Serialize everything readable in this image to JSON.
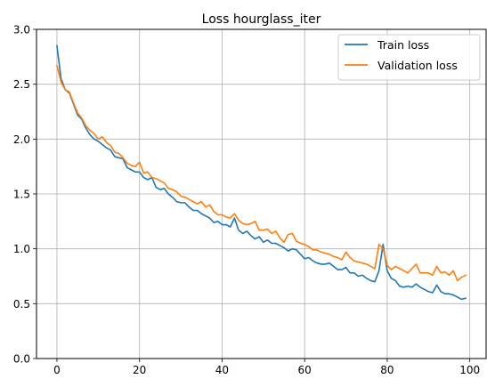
{
  "chart_data": {
    "type": "line",
    "title": "Loss hourglass_iter",
    "xlabel": "",
    "ylabel": "",
    "xlim": [
      -4.95,
      103.95
    ],
    "ylim": [
      0,
      3.0
    ],
    "xticks": [
      0,
      20,
      40,
      60,
      80,
      100
    ],
    "yticks": [
      0.0,
      0.5,
      1.0,
      1.5,
      2.0,
      2.5,
      3.0
    ],
    "xtick_labels": [
      "0",
      "20",
      "40",
      "60",
      "80",
      "100"
    ],
    "ytick_labels": [
      "0.0",
      "0.5",
      "1.0",
      "1.5",
      "2.0",
      "2.5",
      "3.0"
    ],
    "grid": true,
    "legend": {
      "position": "top-right",
      "entries": [
        "Train loss",
        "Validation loss"
      ]
    },
    "x": [
      0,
      1,
      2,
      3,
      4,
      5,
      6,
      7,
      8,
      9,
      10,
      11,
      12,
      13,
      14,
      15,
      16,
      17,
      18,
      19,
      20,
      21,
      22,
      23,
      24,
      25,
      26,
      27,
      28,
      29,
      30,
      31,
      32,
      33,
      34,
      35,
      36,
      37,
      38,
      39,
      40,
      41,
      42,
      43,
      44,
      45,
      46,
      47,
      48,
      49,
      50,
      51,
      52,
      53,
      54,
      55,
      56,
      57,
      58,
      59,
      60,
      61,
      62,
      63,
      64,
      65,
      66,
      67,
      68,
      69,
      70,
      71,
      72,
      73,
      74,
      75,
      76,
      77,
      78,
      79,
      80,
      81,
      82,
      83,
      84,
      85,
      86,
      87,
      88,
      89,
      90,
      91,
      92,
      93,
      94,
      95,
      96,
      97,
      98,
      99
    ],
    "series": [
      {
        "name": "Train loss",
        "color": "#1f77b4",
        "values": [
          2.85,
          2.55,
          2.45,
          2.42,
          2.32,
          2.22,
          2.18,
          2.1,
          2.04,
          2.0,
          1.98,
          1.95,
          1.92,
          1.9,
          1.84,
          1.83,
          1.82,
          1.74,
          1.72,
          1.7,
          1.7,
          1.65,
          1.63,
          1.65,
          1.56,
          1.54,
          1.55,
          1.5,
          1.47,
          1.43,
          1.42,
          1.42,
          1.38,
          1.35,
          1.35,
          1.32,
          1.3,
          1.28,
          1.24,
          1.25,
          1.22,
          1.22,
          1.2,
          1.28,
          1.17,
          1.14,
          1.16,
          1.12,
          1.09,
          1.11,
          1.06,
          1.08,
          1.05,
          1.05,
          1.03,
          1.01,
          0.98,
          1.0,
          0.99,
          0.95,
          0.91,
          0.92,
          0.89,
          0.87,
          0.86,
          0.86,
          0.87,
          0.84,
          0.81,
          0.81,
          0.83,
          0.78,
          0.78,
          0.75,
          0.76,
          0.73,
          0.71,
          0.7,
          0.8,
          1.04,
          0.8,
          0.73,
          0.71,
          0.66,
          0.65,
          0.66,
          0.65,
          0.68,
          0.65,
          0.63,
          0.61,
          0.6,
          0.67,
          0.61,
          0.59,
          0.59,
          0.58,
          0.56,
          0.54,
          0.55
        ]
      },
      {
        "name": "Validation loss",
        "color": "#ff7f0e",
        "values": [
          2.67,
          2.52,
          2.45,
          2.43,
          2.33,
          2.24,
          2.19,
          2.12,
          2.08,
          2.05,
          2.0,
          2.02,
          1.97,
          1.94,
          1.88,
          1.87,
          1.83,
          1.78,
          1.76,
          1.75,
          1.79,
          1.69,
          1.7,
          1.65,
          1.64,
          1.62,
          1.6,
          1.55,
          1.54,
          1.52,
          1.48,
          1.47,
          1.45,
          1.43,
          1.41,
          1.43,
          1.38,
          1.4,
          1.34,
          1.31,
          1.31,
          1.29,
          1.28,
          1.32,
          1.26,
          1.23,
          1.22,
          1.23,
          1.25,
          1.17,
          1.17,
          1.18,
          1.14,
          1.16,
          1.1,
          1.06,
          1.13,
          1.14,
          1.07,
          1.05,
          1.04,
          1.02,
          0.99,
          0.99,
          0.97,
          0.96,
          0.95,
          0.93,
          0.92,
          0.9,
          0.97,
          0.92,
          0.89,
          0.88,
          0.87,
          0.86,
          0.84,
          0.82,
          1.04,
          1.0,
          0.85,
          0.81,
          0.84,
          0.82,
          0.8,
          0.78,
          0.82,
          0.86,
          0.78,
          0.78,
          0.78,
          0.76,
          0.84,
          0.78,
          0.79,
          0.76,
          0.8,
          0.71,
          0.74,
          0.76
        ]
      }
    ]
  }
}
